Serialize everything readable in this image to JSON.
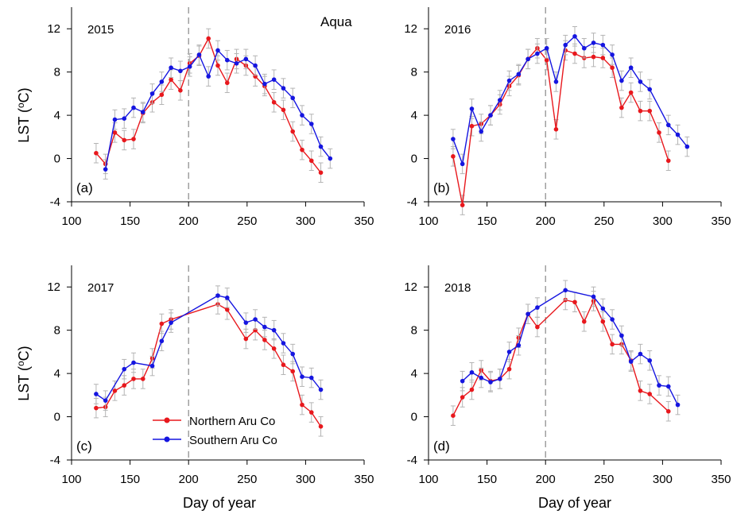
{
  "figure": {
    "sensor_label": "Aqua",
    "ylabel_main": "LST (",
    "ylabel_unit": "o",
    "ylabel_end": "C)",
    "xlabel": "Day of year"
  },
  "colors": {
    "northern": "#e8181d",
    "southern": "#1515e0",
    "errorbar": "#b4b4b4",
    "divider": "#888888"
  },
  "legend": {
    "items": [
      {
        "name": "Northern Aru Co",
        "color_key": "northern"
      },
      {
        "name": "Southern Aru Co",
        "color_key": "southern"
      }
    ]
  },
  "chart_data": [
    {
      "type": "line",
      "year_label": "2015",
      "panel_label": "(a)",
      "xlim": [
        100,
        350
      ],
      "ylim": [
        -4,
        14
      ],
      "xticks": [
        100,
        150,
        200,
        250,
        300,
        350
      ],
      "yticks": [
        -4,
        0,
        4,
        8,
        12
      ],
      "divider_x": 200,
      "series": [
        {
          "name": "Northern Aru Co",
          "color_key": "northern",
          "x": [
            121,
            129,
            137,
            145,
            153,
            161,
            169,
            177,
            185,
            193,
            201,
            209,
            217,
            225,
            233,
            241,
            249,
            257,
            265,
            273,
            281,
            289,
            297,
            305,
            313
          ],
          "y": [
            0.5,
            -0.5,
            2.4,
            1.7,
            1.8,
            4.2,
            5.2,
            5.9,
            7.3,
            6.3,
            8.8,
            9.5,
            11.1,
            8.6,
            7.0,
            9.2,
            8.6,
            7.6,
            6.7,
            5.2,
            4.5,
            2.5,
            0.8,
            -0.2,
            -1.3
          ]
        },
        {
          "name": "Southern Aru Co",
          "color_key": "southern",
          "x": [
            129,
            137,
            145,
            153,
            161,
            169,
            177,
            185,
            193,
            201,
            209,
            217,
            225,
            233,
            241,
            249,
            257,
            265,
            273,
            281,
            289,
            297,
            305,
            313,
            321
          ],
          "y": [
            -1.0,
            3.6,
            3.7,
            4.7,
            4.3,
            6.0,
            7.1,
            8.4,
            8.1,
            8.5,
            9.6,
            7.6,
            10.0,
            9.1,
            8.8,
            9.2,
            8.6,
            6.9,
            7.3,
            6.5,
            5.6,
            4.0,
            3.2,
            1.1,
            0.0
          ]
        }
      ]
    },
    {
      "type": "line",
      "year_label": "2016",
      "panel_label": "(b)",
      "xlim": [
        100,
        350
      ],
      "ylim": [
        -4,
        14
      ],
      "xticks": [
        100,
        150,
        200,
        250,
        300,
        350
      ],
      "yticks": [
        -4,
        0,
        4,
        8,
        12
      ],
      "divider_x": 200,
      "series": [
        {
          "name": "Northern Aru Co",
          "color_key": "northern",
          "x": [
            121,
            129,
            137,
            145,
            153,
            161,
            169,
            177,
            185,
            193,
            201,
            209,
            217,
            225,
            233,
            241,
            249,
            257,
            265,
            273,
            281,
            289,
            297,
            305
          ],
          "y": [
            0.2,
            -4.3,
            3.0,
            3.2,
            4.0,
            5.0,
            6.7,
            7.7,
            9.2,
            10.2,
            9.1,
            2.7,
            10.0,
            9.7,
            9.3,
            9.4,
            9.3,
            8.4,
            4.7,
            6.1,
            4.4,
            4.4,
            2.4,
            -0.2
          ]
        },
        {
          "name": "Southern Aru Co",
          "color_key": "southern",
          "x": [
            121,
            129,
            137,
            145,
            153,
            161,
            169,
            177,
            185,
            193,
            201,
            209,
            217,
            225,
            233,
            241,
            249,
            257,
            265,
            273,
            281,
            289,
            305,
            313,
            321
          ],
          "y": [
            1.8,
            -0.5,
            4.6,
            2.5,
            4.0,
            5.4,
            7.2,
            7.8,
            9.2,
            9.7,
            10.2,
            7.1,
            10.5,
            11.3,
            10.2,
            10.7,
            10.5,
            9.6,
            7.2,
            8.4,
            7.1,
            6.4,
            3.1,
            2.2,
            1.1
          ]
        }
      ]
    },
    {
      "type": "line",
      "year_label": "2017",
      "panel_label": "(c)",
      "xlim": [
        100,
        350
      ],
      "ylim": [
        -4,
        14
      ],
      "xticks": [
        100,
        150,
        200,
        250,
        300,
        350
      ],
      "yticks": [
        -4,
        0,
        4,
        8,
        12
      ],
      "divider_x": 200,
      "series": [
        {
          "name": "Northern Aru Co",
          "color_key": "northern",
          "x": [
            121,
            129,
            137,
            145,
            153,
            161,
            169,
            177,
            185,
            225,
            233,
            249,
            257,
            265,
            273,
            281,
            289,
            297,
            305,
            313
          ],
          "y": [
            0.8,
            0.9,
            2.4,
            2.9,
            3.5,
            3.5,
            5.4,
            8.6,
            9.0,
            10.4,
            9.9,
            7.2,
            8.0,
            7.1,
            6.3,
            4.8,
            4.2,
            1.1,
            0.4,
            -0.9
          ]
        },
        {
          "name": "Southern Aru Co",
          "color_key": "southern",
          "x": [
            121,
            129,
            145,
            153,
            169,
            177,
            185,
            225,
            233,
            249,
            257,
            265,
            273,
            281,
            289,
            297,
            305,
            313
          ],
          "y": [
            2.1,
            1.5,
            4.4,
            5.0,
            4.7,
            7.0,
            8.7,
            11.2,
            11.0,
            8.7,
            9.0,
            8.3,
            8.0,
            6.8,
            5.8,
            3.7,
            3.6,
            2.5
          ]
        }
      ]
    },
    {
      "type": "line",
      "year_label": "2018",
      "panel_label": "(d)",
      "xlim": [
        100,
        350
      ],
      "ylim": [
        -4,
        14
      ],
      "xticks": [
        100,
        150,
        200,
        250,
        300,
        350
      ],
      "yticks": [
        -4,
        0,
        4,
        8,
        12
      ],
      "divider_x": 200,
      "series": [
        {
          "name": "Northern Aru Co",
          "color_key": "northern",
          "x": [
            121,
            129,
            137,
            145,
            153,
            161,
            169,
            177,
            185,
            193,
            217,
            225,
            233,
            241,
            249,
            257,
            265,
            273,
            281,
            289,
            305
          ],
          "y": [
            0.1,
            1.8,
            2.5,
            4.3,
            3.3,
            3.5,
            4.4,
            7.3,
            9.5,
            8.3,
            10.8,
            10.6,
            8.8,
            10.7,
            8.8,
            6.7,
            6.7,
            5.2,
            2.4,
            2.1,
            0.5
          ]
        },
        {
          "name": "Southern Aru Co",
          "color_key": "southern",
          "x": [
            129,
            137,
            145,
            153,
            161,
            169,
            177,
            185,
            193,
            217,
            241,
            249,
            257,
            265,
            273,
            281,
            289,
            297,
            305,
            313
          ],
          "y": [
            3.3,
            4.1,
            3.6,
            3.2,
            3.5,
            6.0,
            6.6,
            9.5,
            10.1,
            11.7,
            11.1,
            10.0,
            9.0,
            7.5,
            5.1,
            5.8,
            5.2,
            2.9,
            2.8,
            1.1
          ]
        }
      ]
    }
  ]
}
